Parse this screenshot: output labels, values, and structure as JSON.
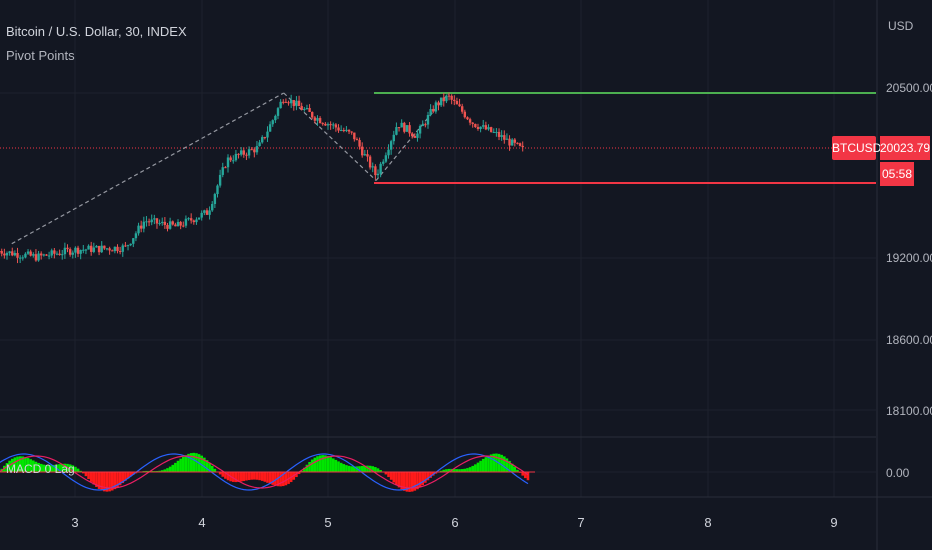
{
  "header": {
    "title": "Bitcoin / U.S. Dollar, 30, INDEX",
    "indicator": "Pivot Points"
  },
  "macd_label": "MACD 0 Lag",
  "axis": {
    "currency": "USD",
    "price_labels": [
      "20500.00",
      "19200.00",
      "18600.00",
      "18100.00",
      "0.00"
    ],
    "date_labels": [
      "3",
      "4",
      "5",
      "6",
      "7",
      "8",
      "9"
    ]
  },
  "tags": {
    "symbol": "BTCUSD",
    "price": "20023.79",
    "countdown": "05:58"
  },
  "colors": {
    "background": "#131722",
    "up": "#26a69a",
    "down": "#ef5350",
    "resistance": "#4caf50",
    "support": "#f23645",
    "macd_positive": "#00e600",
    "macd_negative": "#ff1a1a",
    "macd_line": "#2962ff",
    "signal_line": "#e91e63"
  },
  "chart_data": {
    "type": "candlestick",
    "symbol": "BTCUSD",
    "interval": "30",
    "last_price": 20023.79,
    "pivot_levels": {
      "high": 20500,
      "low": 19770
    },
    "zigzag": [
      {
        "day": 2.5,
        "price": 19260
      },
      {
        "day": 4.65,
        "price": 20500
      },
      {
        "day": 5.38,
        "price": 19780
      },
      {
        "day": 5.95,
        "price": 20495
      }
    ],
    "macd_zero": 0
  }
}
